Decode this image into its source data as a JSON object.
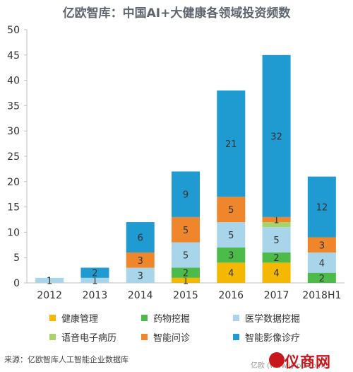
{
  "chart_data": {
    "type": "bar",
    "stacked": true,
    "title": "亿欧智库：中国AI+大健康各领域投资频数",
    "categories": [
      "2012",
      "2013",
      "2014",
      "2015",
      "2016",
      "2017",
      "2018H1"
    ],
    "ylim": [
      0,
      50
    ],
    "yticks": [
      0,
      5,
      10,
      15,
      20,
      25,
      30,
      35,
      40,
      45,
      50
    ],
    "grid": false,
    "legend_position": "bottom",
    "series": [
      {
        "name": "健康管理",
        "color": "#f5b800",
        "values": [
          0,
          0,
          0,
          1,
          4,
          4,
          0
        ]
      },
      {
        "name": "药物挖掘",
        "color": "#4dbb4a",
        "values": [
          0,
          0,
          0,
          2,
          3,
          2,
          2
        ]
      },
      {
        "name": "医学数据挖掘",
        "color": "#a8d5ea",
        "values": [
          1,
          1,
          3,
          5,
          5,
          5,
          4
        ]
      },
      {
        "name": "语音电子病历",
        "color": "#a8d36b",
        "values": [
          0,
          0,
          0,
          0,
          0,
          1,
          0
        ]
      },
      {
        "name": "智能问诊",
        "color": "#f0862b",
        "values": [
          0,
          0,
          3,
          5,
          5,
          1,
          3
        ]
      },
      {
        "name": "智能影像诊疗",
        "color": "#1f9bd1",
        "values": [
          0,
          2,
          6,
          9,
          21,
          32,
          12
        ]
      }
    ],
    "labels": [
      [
        null,
        null,
        null,
        "1",
        "4",
        "4",
        null
      ],
      [
        null,
        null,
        null,
        "2",
        "3",
        "2",
        "2"
      ],
      [
        "1",
        "1",
        "3",
        "5",
        "5",
        "5",
        "4"
      ],
      [
        null,
        null,
        null,
        null,
        null,
        null,
        null
      ],
      [
        null,
        null,
        "3",
        "5",
        "5",
        "1",
        "3"
      ],
      [
        null,
        "2",
        "6",
        "9",
        "21",
        "32",
        "12"
      ]
    ]
  },
  "source": "来源：亿欧智库人工智能企业数据库",
  "watermark": {
    "main": "仪商网",
    "sub": "亿欧 (www.iyiou.com)"
  }
}
